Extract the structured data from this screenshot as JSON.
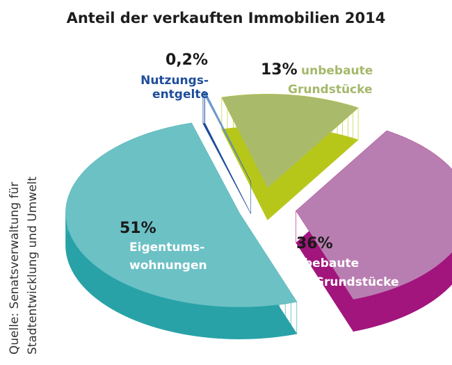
{
  "chart_data": {
    "type": "pie",
    "title": "Anteil der verkauften Immobilien 2014",
    "slices": [
      {
        "label_line1": "Nutzungs-",
        "label_line2": "entgelte",
        "value": 0.2,
        "value_label": "0,2%",
        "top_color": "#6f9fd6",
        "side_color": "#1c4b9b",
        "text_color": "#1f4e9c"
      },
      {
        "label_line1": "unbebaute",
        "label_line2": "Grundstücke",
        "value": 13,
        "value_label": "13%",
        "top_color": "#a9bb6a",
        "side_color": "#b7c71a",
        "text_color": "#a5b86a"
      },
      {
        "label_line1": "bebaute",
        "label_line2": "Grundstücke",
        "value": 36,
        "value_label": "36%",
        "top_color": "#b97eb1",
        "side_color": "#a2157d",
        "text_color": "#ffffff"
      },
      {
        "label_line1": "Eigentums-",
        "label_line2": "wohnungen",
        "value": 51,
        "value_label": "51%",
        "top_color": "#6cc1c5",
        "side_color": "#28a2a7",
        "text_color": "#ffffff"
      }
    ],
    "style": "3d-exploded"
  },
  "source": {
    "line1": "Quelle: Senatsverwaltung für",
    "line2": "Stadtentwicklung und Umwelt"
  }
}
